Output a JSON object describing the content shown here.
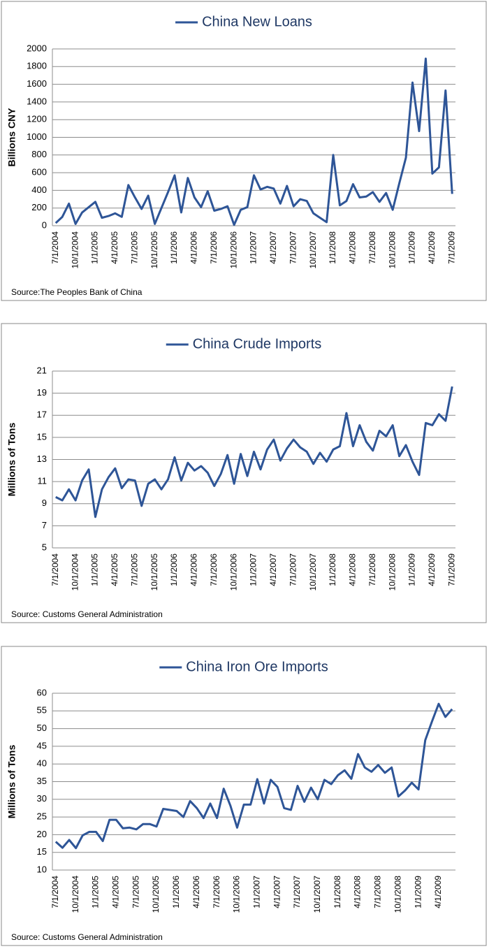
{
  "chart_data": [
    {
      "type": "line",
      "categories": [
        "7/1/2004",
        null,
        null,
        "10/1/2004",
        null,
        null,
        "1/1/2005",
        null,
        null,
        "4/1/2005",
        null,
        null,
        "7/1/2005",
        null,
        null,
        "10/1/2005",
        null,
        null,
        "1/1/2006",
        null,
        null,
        "4/1/2006",
        null,
        null,
        "7/1/2006",
        null,
        null,
        "10/1/2006",
        null,
        null,
        "1/1/2007",
        null,
        null,
        "4/1/2007",
        null,
        null,
        "7/1/2007",
        null,
        null,
        "10/1/2007",
        null,
        null,
        "1/1/2008",
        null,
        null,
        "4/1/2008",
        null,
        null,
        "7/1/2008",
        null,
        null,
        "10/1/2008",
        null,
        null,
        "1/1/2009",
        null,
        null,
        "4/1/2009",
        null,
        null,
        "7/1/2009"
      ],
      "series": [
        {
          "name": "China New Loans",
          "color": "#2e5597",
          "values": [
            30,
            100,
            250,
            20,
            150,
            210,
            270,
            90,
            110,
            140,
            100,
            460,
            320,
            190,
            340,
            20,
            200,
            380,
            570,
            150,
            540,
            320,
            210,
            390,
            170,
            190,
            220,
            10,
            180,
            210,
            570,
            410,
            440,
            420,
            250,
            450,
            220,
            300,
            280,
            140,
            90,
            40,
            800,
            230,
            280,
            470,
            320,
            330,
            380,
            270,
            370,
            180,
            480,
            770,
            1620,
            1070,
            1890,
            590,
            660,
            1530,
            360
          ]
        }
      ],
      "y_label": "Billions CNY",
      "ylim": [
        0,
        2000
      ],
      "yticks": [
        0,
        200,
        400,
        600,
        800,
        1000,
        1200,
        1400,
        1600,
        1800,
        2000
      ],
      "grid": true,
      "legend": "top",
      "source": "Source:The Peoples Bank of China"
    },
    {
      "type": "line",
      "categories": [
        "7/1/2004",
        null,
        null,
        "10/1/2004",
        null,
        null,
        "1/1/2005",
        null,
        null,
        "4/1/2005",
        null,
        null,
        "7/1/2005",
        null,
        null,
        "10/1/2005",
        null,
        null,
        "1/1/2006",
        null,
        null,
        "4/1/2006",
        null,
        null,
        "7/1/2006",
        null,
        null,
        "10/1/2006",
        null,
        null,
        "1/1/2007",
        null,
        null,
        "4/1/2007",
        null,
        null,
        "7/1/2007",
        null,
        null,
        "10/1/2007",
        null,
        null,
        "1/1/2008",
        null,
        null,
        "4/1/2008",
        null,
        null,
        "7/1/2008",
        null,
        null,
        "10/1/2008",
        null,
        null,
        "1/1/2009",
        null,
        null,
        "4/1/2009",
        null,
        null,
        "7/1/2009"
      ],
      "series": [
        {
          "name": "China Crude Imports",
          "color": "#2e5597",
          "values": [
            9.6,
            9.3,
            10.3,
            9.3,
            11.1,
            12.1,
            7.8,
            10.3,
            11.4,
            12.2,
            10.4,
            11.2,
            11.1,
            8.8,
            10.8,
            11.2,
            10.3,
            11.2,
            13.2,
            11.1,
            12.7,
            12.0,
            12.4,
            11.8,
            10.6,
            11.7,
            13.4,
            10.8,
            13.5,
            11.5,
            13.7,
            12.1,
            13.9,
            14.8,
            12.9,
            14.0,
            14.8,
            14.1,
            13.7,
            12.6,
            13.6,
            12.8,
            13.9,
            14.2,
            17.2,
            14.2,
            16.1,
            14.6,
            13.8,
            15.6,
            15.1,
            16.1,
            13.3,
            14.3,
            12.8,
            11.6,
            16.3,
            16.1,
            17.1,
            16.5,
            19.6
          ]
        }
      ],
      "y_label": "Millions of Tons",
      "ylim": [
        5,
        21
      ],
      "yticks": [
        5,
        7,
        9,
        11,
        13,
        15,
        17,
        19,
        21
      ],
      "grid": true,
      "legend": "top",
      "source": "Source: Customs General Administration"
    },
    {
      "type": "line",
      "categories": [
        "7/1/2004",
        null,
        null,
        "10/1/2004",
        null,
        null,
        "1/1/2005",
        null,
        null,
        "4/1/2005",
        null,
        null,
        "7/1/2005",
        null,
        null,
        "10/1/2005",
        null,
        null,
        "1/1/2006",
        null,
        null,
        "4/1/2006",
        null,
        null,
        "7/1/2006",
        null,
        null,
        "10/1/2006",
        null,
        null,
        "1/1/2007",
        null,
        null,
        "4/1/2007",
        null,
        null,
        "7/1/2007",
        null,
        null,
        "10/1/2007",
        null,
        null,
        "1/1/2008",
        null,
        null,
        "4/1/2008",
        null,
        null,
        "7/1/2008",
        null,
        null,
        "10/1/2008",
        null,
        null,
        "1/1/2009",
        null,
        null,
        "4/1/2009",
        null,
        null
      ],
      "series": [
        {
          "name": "China Iron Ore Imports",
          "color": "#2e5597",
          "values": [
            18,
            16.3,
            18.5,
            16.2,
            19.8,
            20.8,
            20.8,
            18.2,
            24.2,
            24.2,
            21.8,
            22,
            21.5,
            23,
            23,
            22.3,
            27.3,
            27,
            26.7,
            25,
            29.5,
            27.5,
            24.7,
            28.8,
            24.7,
            33,
            28.2,
            22,
            28.5,
            28.5,
            35.7,
            28.8,
            35.5,
            33.5,
            27.5,
            27,
            33.8,
            29.3,
            33.3,
            30,
            35.5,
            34.3,
            36.8,
            38.2,
            35.8,
            42.8,
            39,
            37.8,
            39.7,
            37.5,
            39,
            30.8,
            32.5,
            34.7,
            32.8,
            46.7,
            52,
            57,
            53.3,
            55.5
          ]
        }
      ],
      "y_label": "Millions of Tons",
      "ylim": [
        10,
        60
      ],
      "yticks": [
        10,
        15,
        20,
        25,
        30,
        35,
        40,
        45,
        50,
        55,
        60
      ],
      "grid": true,
      "legend": "top",
      "source": "Source: Customs General Administration"
    }
  ]
}
